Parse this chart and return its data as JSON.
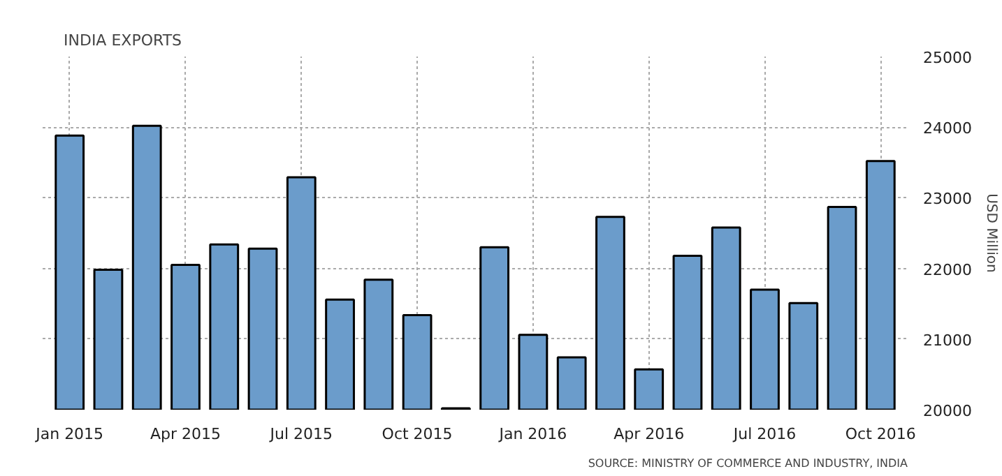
{
  "chart_data": {
    "type": "bar",
    "title": "INDIA EXPORTS",
    "ylabel": "USD Million",
    "categories": [
      "Jan 2015",
      null,
      null,
      "Apr 2015",
      null,
      null,
      "Jul 2015",
      null,
      null,
      "Oct 2015",
      null,
      null,
      "Jan 2016",
      null,
      null,
      "Apr 2016",
      null,
      null,
      "Jul 2016",
      null,
      null,
      "Oct 2016"
    ],
    "values": [
      23880,
      21980,
      24020,
      22050,
      22340,
      22280,
      23290,
      21560,
      21840,
      21340,
      20020,
      22300,
      21060,
      20740,
      22730,
      20570,
      22180,
      22580,
      21700,
      21510,
      22870,
      23520
    ],
    "color": "#6b9ccb",
    "ylim": [
      20000,
      25000
    ],
    "yticks": [
      20000,
      21000,
      22000,
      23000,
      24000,
      25000
    ],
    "grid": true,
    "annotations": [
      "SOURCE: MINISTRY OF COMMERCE AND INDUSTRY, INDIA"
    ]
  }
}
